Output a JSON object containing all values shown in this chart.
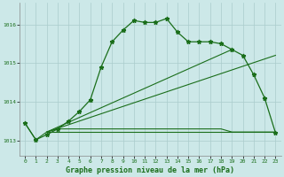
{
  "title": "Graphe pression niveau de la mer (hPa)",
  "bg_color": "#cce8e8",
  "grid_color": "#aacccc",
  "line_color": "#1a6e1a",
  "xlim": [
    -0.5,
    23.5
  ],
  "ylim": [
    1012.6,
    1016.55
  ],
  "yticks": [
    1013,
    1014,
    1015,
    1016
  ],
  "xticks": [
    0,
    1,
    2,
    3,
    4,
    5,
    6,
    7,
    8,
    9,
    10,
    11,
    12,
    13,
    14,
    15,
    16,
    17,
    18,
    19,
    20,
    21,
    22,
    23
  ],
  "series1_x": [
    0,
    1,
    2,
    3,
    4,
    5,
    6,
    7,
    8,
    9,
    10,
    11,
    12,
    13,
    14,
    15,
    16,
    17,
    18,
    19,
    20,
    21,
    22,
    23
  ],
  "series1_y": [
    1013.45,
    1013.02,
    1013.15,
    1013.3,
    1013.5,
    1013.75,
    1014.05,
    1014.9,
    1015.55,
    1015.85,
    1016.1,
    1016.05,
    1016.05,
    1016.15,
    1015.8,
    1015.55,
    1015.55,
    1015.55,
    1015.5,
    1015.35,
    1015.2,
    1014.7,
    1014.1,
    1013.2
  ],
  "series2_x": [
    0,
    1,
    2,
    3,
    10,
    14,
    18,
    19,
    23
  ],
  "series2_y": [
    1013.45,
    1013.02,
    1013.22,
    1013.3,
    1013.3,
    1013.3,
    1013.3,
    1013.22,
    1013.22
  ],
  "series3_x": [
    2,
    23
  ],
  "series3_y": [
    1013.22,
    1013.22
  ],
  "series4_x": [
    2,
    19
  ],
  "series4_y": [
    1013.22,
    1015.35
  ],
  "series5_x": [
    2,
    23
  ],
  "series5_y": [
    1013.22,
    1015.2
  ]
}
